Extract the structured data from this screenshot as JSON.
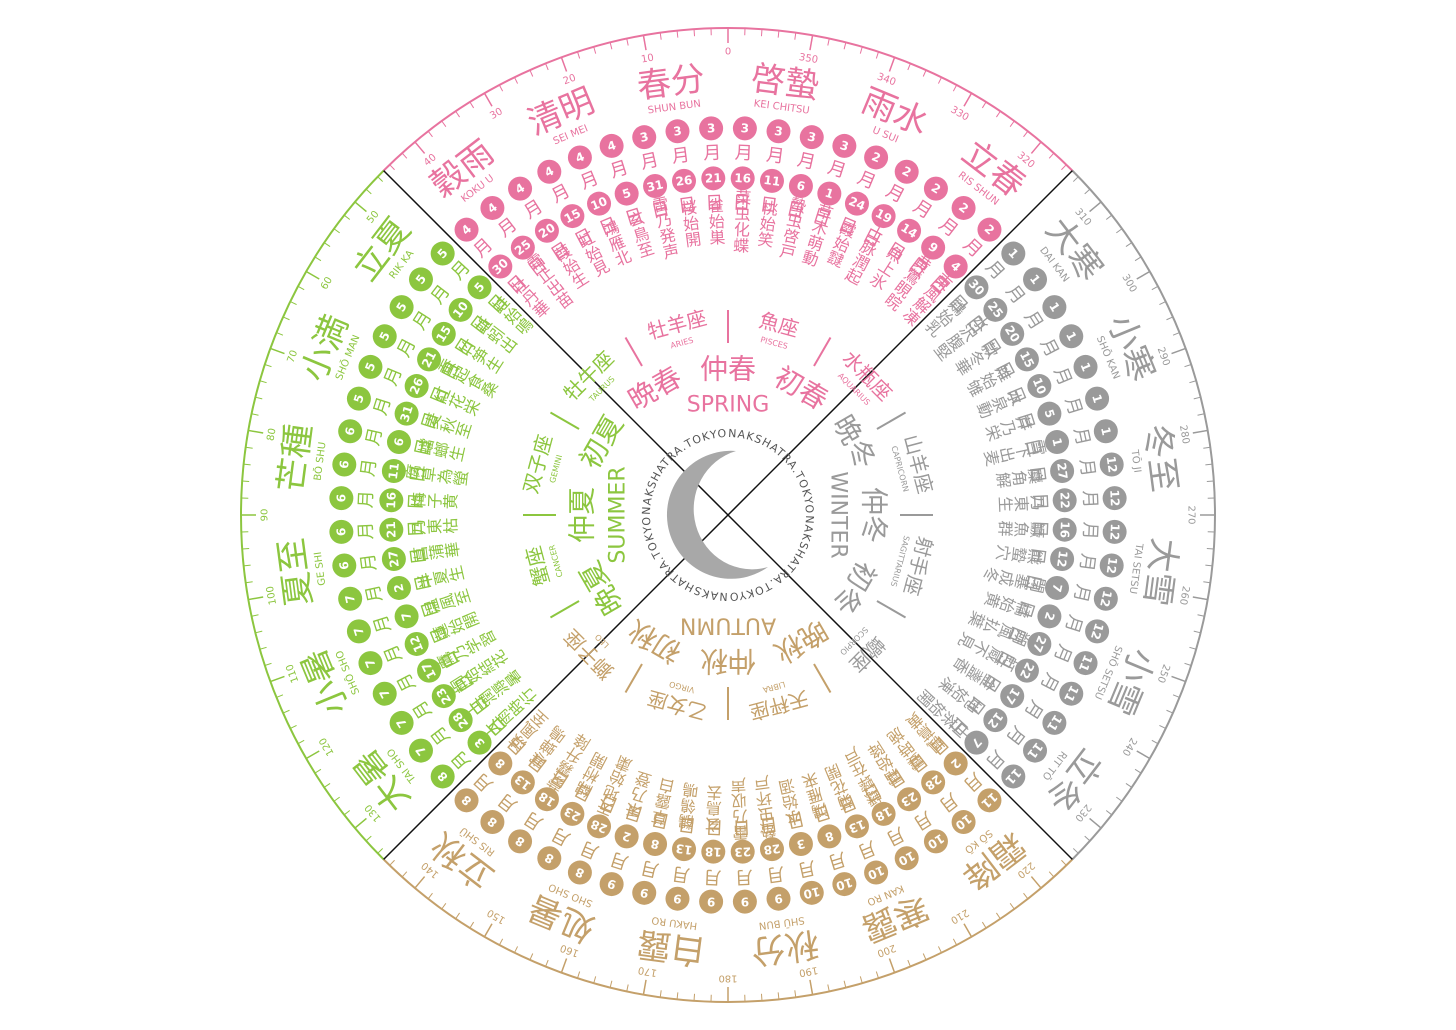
{
  "labels": {
    "month": "月",
    "day": "日"
  },
  "logo": "NAKSHATRA.TOKYO",
  "degrees": [
    0,
    10,
    20,
    30,
    40,
    50,
    60,
    70,
    80,
    90,
    100,
    110,
    120,
    130,
    140,
    150,
    160,
    170,
    180,
    190,
    200,
    210,
    220,
    230,
    240,
    250,
    260,
    270,
    280,
    290,
    300,
    310,
    320,
    330,
    340,
    350
  ],
  "seasons": [
    {
      "name": "SPRING",
      "color": "#e8739f",
      "phases": [
        "初春",
        "仲春",
        "晩春"
      ],
      "sekki": [
        {
          "name": "立春",
          "romaji": "RIS SHUN",
          "ko": [
            {
              "name": "東風解凍",
              "month": 2,
              "day": 4
            },
            {
              "name": "黄鶯睍睆",
              "month": 2,
              "day": 9
            },
            {
              "name": "魚上氷",
              "month": 2,
              "day": 14
            }
          ]
        },
        {
          "name": "雨水",
          "romaji": "U SUI",
          "ko": [
            {
              "name": "土脉潤起",
              "month": 2,
              "day": 19
            },
            {
              "name": "霞始靆",
              "month": 2,
              "day": 24
            },
            {
              "name": "草木萌動",
              "month": 3,
              "day": 1
            }
          ]
        },
        {
          "name": "啓蟄",
          "romaji": "KEI CHITSU",
          "ko": [
            {
              "name": "蟄虫啓戸",
              "month": 3,
              "day": 6
            },
            {
              "name": "桃始笑",
              "month": 3,
              "day": 11
            },
            {
              "name": "菜虫化蝶",
              "month": 3,
              "day": 16
            }
          ]
        },
        {
          "name": "春分",
          "romaji": "SHUN BUN",
          "ko": [
            {
              "name": "雀始巣",
              "month": 3,
              "day": 21
            },
            {
              "name": "桜始開",
              "month": 3,
              "day": 26
            },
            {
              "name": "雷乃発声",
              "month": 3,
              "day": 31
            }
          ]
        },
        {
          "name": "清明",
          "romaji": "SEI MEI",
          "ko": [
            {
              "name": "玄鳥至",
              "month": 4,
              "day": 5
            },
            {
              "name": "鴻雁北",
              "month": 4,
              "day": 10
            },
            {
              "name": "虹始見",
              "month": 4,
              "day": 15
            }
          ]
        },
        {
          "name": "穀雨",
          "romaji": "KOKU U",
          "ko": [
            {
              "name": "葭始生",
              "month": 4,
              "day": 20
            },
            {
              "name": "霜止出苗",
              "month": 4,
              "day": 25
            },
            {
              "name": "牡丹華",
              "month": 4,
              "day": 30
            }
          ]
        }
      ]
    },
    {
      "name": "SUMMER",
      "color": "#8cc63f",
      "phases": [
        "初夏",
        "仲夏",
        "晩夏"
      ],
      "sekki": [
        {
          "name": "立夏",
          "romaji": "RIK KA",
          "ko": [
            {
              "name": "蛙始鳴",
              "month": 5,
              "day": 5
            },
            {
              "name": "蚯蚓出",
              "month": 5,
              "day": 10
            },
            {
              "name": "竹笋生",
              "month": 5,
              "day": 15
            }
          ]
        },
        {
          "name": "小満",
          "romaji": "SHŌ MAN",
          "ko": [
            {
              "name": "蚕起食桑",
              "month": 5,
              "day": 21
            },
            {
              "name": "紅花栄",
              "month": 5,
              "day": 26
            },
            {
              "name": "麦秋至",
              "month": 5,
              "day": 31
            }
          ]
        },
        {
          "name": "芒種",
          "romaji": "BŌ SHU",
          "ko": [
            {
              "name": "蟷螂生",
              "month": 6,
              "day": 6
            },
            {
              "name": "腐草為螢",
              "month": 6,
              "day": 11
            },
            {
              "name": "梅子黄",
              "month": 6,
              "day": 16
            }
          ]
        },
        {
          "name": "夏至",
          "romaji": "GE SHI",
          "ko": [
            {
              "name": "乃東枯",
              "month": 6,
              "day": 21
            },
            {
              "name": "菖蒲華",
              "month": 6,
              "day": 27
            },
            {
              "name": "半夏生",
              "month": 7,
              "day": 2
            }
          ]
        },
        {
          "name": "小暑",
          "romaji": "SHŌ SHO",
          "ko": [
            {
              "name": "温風至",
              "month": 7,
              "day": 7
            },
            {
              "name": "蓮始開",
              "month": 7,
              "day": 12
            },
            {
              "name": "鷹乃学習",
              "month": 7,
              "day": 17
            }
          ]
        },
        {
          "name": "大暑",
          "romaji": "TAI SHO",
          "ko": [
            {
              "name": "桐始結花",
              "month": 7,
              "day": 23
            },
            {
              "name": "土潤溽暑",
              "month": 7,
              "day": 28
            },
            {
              "name": "大雨時行",
              "month": 8,
              "day": 3
            }
          ]
        }
      ]
    },
    {
      "name": "AUTUMN",
      "color": "#c4a06a",
      "phases": [
        "初秋",
        "仲秋",
        "晩秋"
      ],
      "sekki": [
        {
          "name": "立秋",
          "romaji": "RIS SHŪ",
          "ko": [
            {
              "name": "涼風至",
              "month": 8,
              "day": 8
            },
            {
              "name": "寒蝉鳴",
              "month": 8,
              "day": 13
            },
            {
              "name": "蒙霧升降",
              "month": 8,
              "day": 18
            }
          ]
        },
        {
          "name": "処暑",
          "romaji": "SHO SHO",
          "ko": [
            {
              "name": "綿柎開",
              "month": 8,
              "day": 23
            },
            {
              "name": "天地始粛",
              "month": 8,
              "day": 28
            },
            {
              "name": "禾乃登",
              "month": 9,
              "day": 2
            }
          ]
        },
        {
          "name": "白露",
          "romaji": "HAKU RO",
          "ko": [
            {
              "name": "草露白",
              "month": 9,
              "day": 8
            },
            {
              "name": "鶺鴒鳴",
              "month": 9,
              "day": 13
            },
            {
              "name": "玄鳥去",
              "month": 9,
              "day": 18
            }
          ]
        },
        {
          "name": "秋分",
          "romaji": "SHŪ BUN",
          "ko": [
            {
              "name": "雷乃収声",
              "month": 9,
              "day": 23
            },
            {
              "name": "蟄虫坏戸",
              "month": 9,
              "day": 28
            },
            {
              "name": "水始涸",
              "month": 10,
              "day": 3
            }
          ]
        },
        {
          "name": "寒露",
          "romaji": "KAN RO",
          "ko": [
            {
              "name": "鴻雁来",
              "month": 10,
              "day": 8
            },
            {
              "name": "菊花開",
              "month": 10,
              "day": 13
            },
            {
              "name": "蟋蟀在戸",
              "month": 10,
              "day": 18
            }
          ]
        },
        {
          "name": "霜降",
          "romaji": "SŌ KŌ",
          "ko": [
            {
              "name": "霜始降",
              "month": 10,
              "day": 23
            },
            {
              "name": "霎時施",
              "month": 10,
              "day": 28
            },
            {
              "name": "楓蔦黄",
              "month": 11,
              "day": 2
            }
          ]
        }
      ]
    },
    {
      "name": "WINTER",
      "color": "#9a9a9a",
      "phases": [
        "初冬",
        "仲冬",
        "晩冬"
      ],
      "sekki": [
        {
          "name": "立冬",
          "romaji": "RIT TŌ",
          "ko": [
            {
              "name": "山茶始開",
              "month": 11,
              "day": 7
            },
            {
              "name": "地始凍",
              "month": 11,
              "day": 12
            },
            {
              "name": "金盞香",
              "month": 11,
              "day": 17
            }
          ]
        },
        {
          "name": "小雪",
          "romaji": "SHŌ SETSU",
          "ko": [
            {
              "name": "虹蔵不見",
              "month": 11,
              "day": 22
            },
            {
              "name": "朔風払葉",
              "month": 11,
              "day": 27
            },
            {
              "name": "橘始黄",
              "month": 12,
              "day": 2
            }
          ]
        },
        {
          "name": "大雪",
          "romaji": "TAI SETSU",
          "ko": [
            {
              "name": "閉塞成冬",
              "month": 12,
              "day": 7
            },
            {
              "name": "熊蟄穴",
              "month": 12,
              "day": 12
            },
            {
              "name": "鱖魚群",
              "month": 12,
              "day": 16
            }
          ]
        },
        {
          "name": "冬至",
          "romaji": "TŌ JI",
          "ko": [
            {
              "name": "乃東生",
              "month": 12,
              "day": 22
            },
            {
              "name": "麋角解",
              "month": 12,
              "day": 27
            },
            {
              "name": "雪下出麦",
              "month": 1,
              "day": 1
            }
          ]
        },
        {
          "name": "小寒",
          "romaji": "SHŌ KAN",
          "ko": [
            {
              "name": "芹乃栄",
              "month": 1,
              "day": 5
            },
            {
              "name": "水泉動",
              "month": 1,
              "day": 10
            },
            {
              "name": "雉始雊",
              "month": 1,
              "day": 15
            }
          ]
        },
        {
          "name": "大寒",
          "romaji": "DAI KAN",
          "ko": [
            {
              "name": "款冬華",
              "month": 1,
              "day": 20
            },
            {
              "name": "水沢腹堅",
              "month": 1,
              "day": 25
            },
            {
              "name": "鶏始乳",
              "month": 1,
              "day": 30
            }
          ]
        }
      ]
    }
  ],
  "zodiac": [
    {
      "name": "水瓶座",
      "latin": "AQUARIUS"
    },
    {
      "name": "魚座",
      "latin": "PISCES"
    },
    {
      "name": "牡羊座",
      "latin": "ARIES"
    },
    {
      "name": "牡牛座",
      "latin": "TAURUS"
    },
    {
      "name": "双子座",
      "latin": "GEMINI"
    },
    {
      "name": "蟹座",
      "latin": "CANCER"
    },
    {
      "name": "獅子座",
      "latin": "LEO"
    },
    {
      "name": "乙女座",
      "latin": "VIRGO"
    },
    {
      "name": "天秤座",
      "latin": "LIBRA"
    },
    {
      "name": "蠍座",
      "latin": "SCORPIO"
    },
    {
      "name": "射手座",
      "latin": "SAGITTARIUS"
    },
    {
      "name": "山羊座",
      "latin": "CAPRICORN"
    }
  ]
}
